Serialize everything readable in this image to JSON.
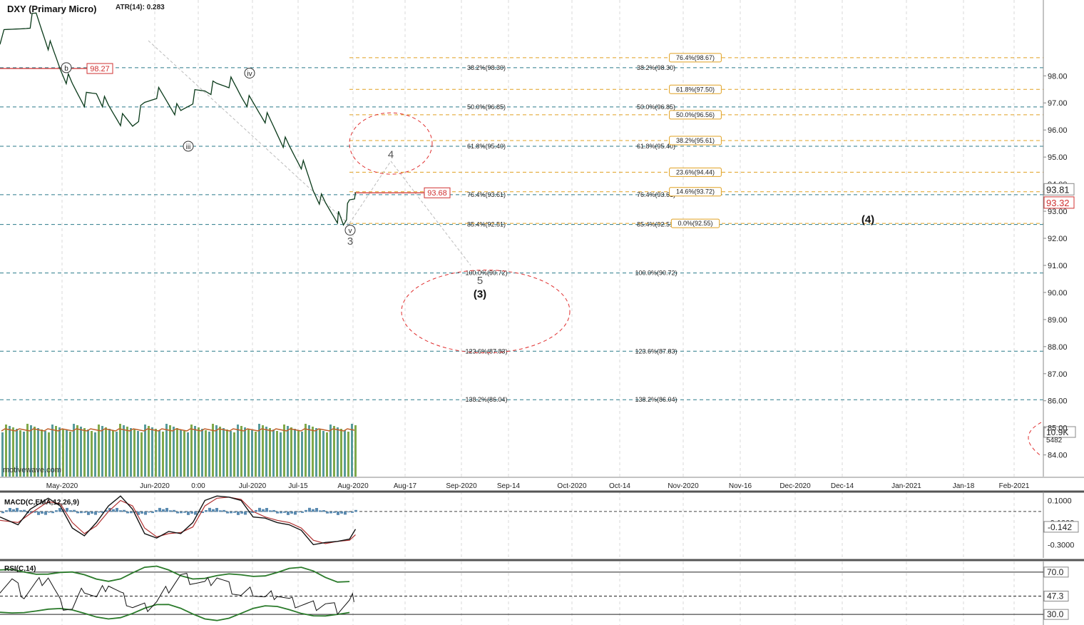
{
  "chart_data": {
    "type": "line",
    "title": "DXY (Primary Micro)",
    "atr_label": "ATR(14): 0.283",
    "watermark": "motivewave.com",
    "price_axis": {
      "ylim": [
        83.2,
        100.8
      ],
      "ticks": [
        "98.00",
        "97.00",
        "96.00",
        "95.00",
        "94.00",
        "93.00",
        "92.00",
        "91.00",
        "90.00",
        "89.00",
        "88.00",
        "87.00",
        "86.00",
        "85.00",
        "84.00"
      ]
    },
    "time_axis": {
      "labels": [
        "May-2020",
        "Jun-2020",
        "0:00",
        "Jul-2020",
        "Jul-15",
        "Aug-2020",
        "Aug-17",
        "Sep-2020",
        "Sep-14",
        "Oct-2020",
        "Oct-14",
        "Nov-2020",
        "Nov-16",
        "Dec-2020",
        "Dec-14",
        "Jan-2021",
        "Jan-18",
        "Feb-2021"
      ]
    },
    "price_series": {
      "name": "DXY",
      "points": [
        [
          0,
          99.4
        ],
        [
          4,
          99.8
        ],
        [
          6,
          100.2
        ],
        [
          8,
          99.2
        ],
        [
          10,
          98.3
        ],
        [
          12,
          97.6
        ],
        [
          14,
          97.1
        ],
        [
          16,
          97.4
        ],
        [
          18,
          96.8
        ],
        [
          20,
          96.4
        ],
        [
          22,
          96.2
        ],
        [
          24,
          96.9
        ],
        [
          26,
          97.4
        ],
        [
          28,
          97.0
        ],
        [
          30,
          96.6
        ],
        [
          32,
          97.2
        ],
        [
          34,
          97.5
        ],
        [
          36,
          97.6
        ],
        [
          38,
          97.8
        ],
        [
          40,
          97.3
        ],
        [
          42,
          96.9
        ],
        [
          44,
          96.5
        ],
        [
          46,
          95.9
        ],
        [
          48,
          95.3
        ],
        [
          50,
          94.8
        ],
        [
          52,
          93.8
        ],
        [
          54,
          93.2
        ],
        [
          56,
          92.8
        ],
        [
          57,
          92.55
        ],
        [
          58,
          93.3
        ],
        [
          59,
          93.7
        ]
      ]
    },
    "price_badges": [
      {
        "label": "98.27",
        "value": 98.27
      },
      {
        "label": "93.68",
        "value": 93.68
      }
    ],
    "axis_badges": [
      {
        "label": "93.81",
        "value": 93.81
      },
      {
        "label": "93.32",
        "value": 93.32
      }
    ],
    "retracements_teal": [
      {
        "label": "38.2%(98.30)",
        "value": 98.3
      },
      {
        "label": "50.0%(96.85)",
        "value": 96.85
      },
      {
        "label": "61.8%(95.40)",
        "value": 95.4
      },
      {
        "label": "76.4%(93.61)",
        "value": 93.61
      },
      {
        "label": "85.4%(92.51)",
        "value": 92.51
      },
      {
        "label": "100.0%(90.72)",
        "value": 90.72
      },
      {
        "label": "123.6%(87.83)",
        "value": 87.83
      },
      {
        "label": "138.2%(86.04)",
        "value": 86.04
      }
    ],
    "extensions_orange": [
      {
        "label": "76.4%(98.67)",
        "value": 98.67
      },
      {
        "label": "61.8%(97.50)",
        "value": 97.5
      },
      {
        "label": "50.0%(96.56)",
        "value": 96.56
      },
      {
        "label": "38.2%(95.61)",
        "value": 95.61
      },
      {
        "label": "23.6%(94.44)",
        "value": 94.44
      },
      {
        "label": "14.6%(93.72)",
        "value": 93.72
      },
      {
        "label": "0.0%(92.55)",
        "value": 92.55
      }
    ],
    "wave_labels": [
      {
        "label": "b",
        "circled": true
      },
      {
        "label": "iii",
        "circled": true
      },
      {
        "label": "iv",
        "circled": true
      },
      {
        "label": "v",
        "circled": true
      },
      {
        "label": "3",
        "circled": false
      },
      {
        "label": "4",
        "circled": false
      },
      {
        "label": "5",
        "circled": false
      },
      {
        "label": "(3)",
        "circled": false
      },
      {
        "label": "(4)",
        "circled": false
      }
    ],
    "volume": {
      "axis_labels": [
        "10.9K",
        "5482"
      ]
    },
    "macd": {
      "title": "MACD(C,EMA,12,26,9)",
      "ylim": [
        -0.42,
        0.18
      ],
      "ticks": [
        "0.1000",
        "-0.1000",
        "-0.3000"
      ],
      "current_label": "-0.142",
      "current": -0.142,
      "macd_line": [
        [
          0,
          -0.05
        ],
        [
          3,
          -0.12
        ],
        [
          5,
          0.02
        ],
        [
          8,
          0.12
        ],
        [
          10,
          0.05
        ],
        [
          12,
          -0.15
        ],
        [
          14,
          -0.22
        ],
        [
          16,
          -0.1
        ],
        [
          18,
          0.05
        ],
        [
          20,
          0.14
        ],
        [
          22,
          0.02
        ],
        [
          24,
          -0.2
        ],
        [
          26,
          -0.24
        ],
        [
          28,
          -0.18
        ],
        [
          30,
          -0.2
        ],
        [
          32,
          -0.1
        ],
        [
          34,
          0.1
        ],
        [
          36,
          0.14
        ],
        [
          38,
          0.13
        ],
        [
          40,
          0.1
        ],
        [
          42,
          -0.05
        ],
        [
          44,
          -0.06
        ],
        [
          46,
          -0.1
        ],
        [
          48,
          -0.12
        ],
        [
          50,
          -0.17
        ],
        [
          52,
          -0.3
        ],
        [
          54,
          -0.28
        ],
        [
          56,
          -0.27
        ],
        [
          58,
          -0.25
        ],
        [
          59,
          -0.16
        ]
      ],
      "signal_line": [
        [
          0,
          -0.08
        ],
        [
          3,
          -0.1
        ],
        [
          5,
          -0.02
        ],
        [
          8,
          0.09
        ],
        [
          10,
          0.07
        ],
        [
          12,
          -0.1
        ],
        [
          14,
          -0.2
        ],
        [
          16,
          -0.13
        ],
        [
          18,
          0.0
        ],
        [
          20,
          0.1
        ],
        [
          22,
          0.05
        ],
        [
          24,
          -0.15
        ],
        [
          26,
          -0.23
        ],
        [
          28,
          -0.2
        ],
        [
          30,
          -0.19
        ],
        [
          32,
          -0.14
        ],
        [
          34,
          0.05
        ],
        [
          36,
          0.12
        ],
        [
          38,
          0.13
        ],
        [
          40,
          0.11
        ],
        [
          42,
          0.0
        ],
        [
          44,
          -0.05
        ],
        [
          46,
          -0.08
        ],
        [
          48,
          -0.1
        ],
        [
          50,
          -0.15
        ],
        [
          52,
          -0.26
        ],
        [
          54,
          -0.29
        ],
        [
          56,
          -0.27
        ],
        [
          58,
          -0.26
        ],
        [
          59,
          -0.21
        ]
      ]
    },
    "rsi": {
      "title": "RSI(C,14)",
      "ylim": [
        20,
        80
      ],
      "ticks": [
        {
          "label": "70.0",
          "value": 70
        },
        {
          "label": "30.0",
          "value": 30
        }
      ],
      "current_label": "47.3",
      "current": 47.3,
      "rsi_line": [
        [
          0,
          55
        ],
        [
          2,
          62
        ],
        [
          4,
          48
        ],
        [
          6,
          58
        ],
        [
          8,
          66
        ],
        [
          10,
          40
        ],
        [
          12,
          35
        ],
        [
          14,
          55
        ],
        [
          16,
          45
        ],
        [
          18,
          60
        ],
        [
          20,
          48
        ],
        [
          22,
          38
        ],
        [
          24,
          36
        ],
        [
          26,
          42
        ],
        [
          28,
          55
        ],
        [
          30,
          66
        ],
        [
          32,
          62
        ],
        [
          34,
          58
        ],
        [
          36,
          66
        ],
        [
          38,
          56
        ],
        [
          40,
          48
        ],
        [
          42,
          52
        ],
        [
          44,
          45
        ],
        [
          46,
          50
        ],
        [
          48,
          42
        ],
        [
          50,
          40
        ],
        [
          52,
          38
        ],
        [
          54,
          40
        ],
        [
          56,
          35
        ],
        [
          58,
          42
        ],
        [
          59,
          48
        ]
      ]
    }
  }
}
